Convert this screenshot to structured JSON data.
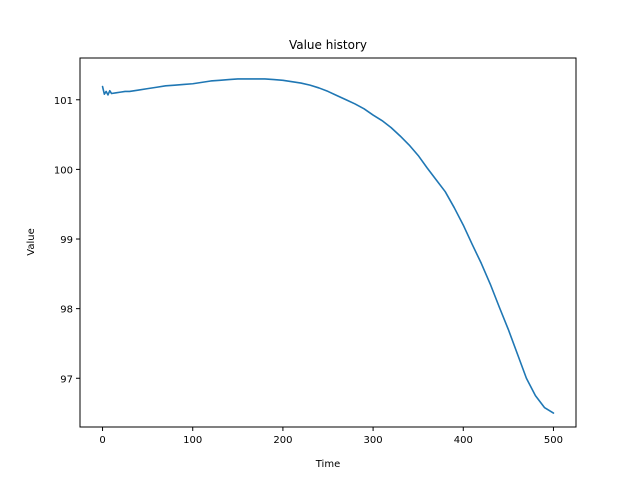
{
  "chart_data": {
    "type": "line",
    "title": "Value history",
    "xlabel": "Time",
    "ylabel": "Value",
    "xlim": [
      -25,
      525
    ],
    "ylim": [
      96.3,
      101.6
    ],
    "xticks": [
      0,
      100,
      200,
      300,
      400,
      500
    ],
    "yticks": [
      97,
      98,
      99,
      100,
      101
    ],
    "grid": false,
    "series": [
      {
        "color": "#1f77b4",
        "x": [
          0,
          2,
          4,
          6,
          8,
          10,
          15,
          20,
          25,
          30,
          40,
          50,
          60,
          70,
          80,
          90,
          100,
          110,
          120,
          130,
          140,
          150,
          160,
          170,
          180,
          190,
          200,
          210,
          220,
          230,
          240,
          250,
          260,
          270,
          280,
          290,
          300,
          310,
          320,
          330,
          340,
          350,
          360,
          370,
          380,
          390,
          400,
          410,
          420,
          430,
          440,
          450,
          460,
          470,
          480,
          490,
          500
        ],
        "y": [
          101.19,
          101.08,
          101.12,
          101.07,
          101.13,
          101.09,
          101.1,
          101.11,
          101.12,
          101.12,
          101.14,
          101.16,
          101.18,
          101.2,
          101.21,
          101.22,
          101.23,
          101.25,
          101.27,
          101.28,
          101.29,
          101.3,
          101.3,
          101.3,
          101.3,
          101.29,
          101.28,
          101.26,
          101.24,
          101.21,
          101.17,
          101.12,
          101.06,
          101.0,
          100.94,
          100.87,
          100.78,
          100.7,
          100.6,
          100.48,
          100.35,
          100.2,
          100.02,
          99.85,
          99.68,
          99.45,
          99.2,
          98.92,
          98.65,
          98.35,
          98.02,
          97.7,
          97.35,
          97.0,
          96.75,
          96.58,
          96.5
        ]
      }
    ]
  }
}
